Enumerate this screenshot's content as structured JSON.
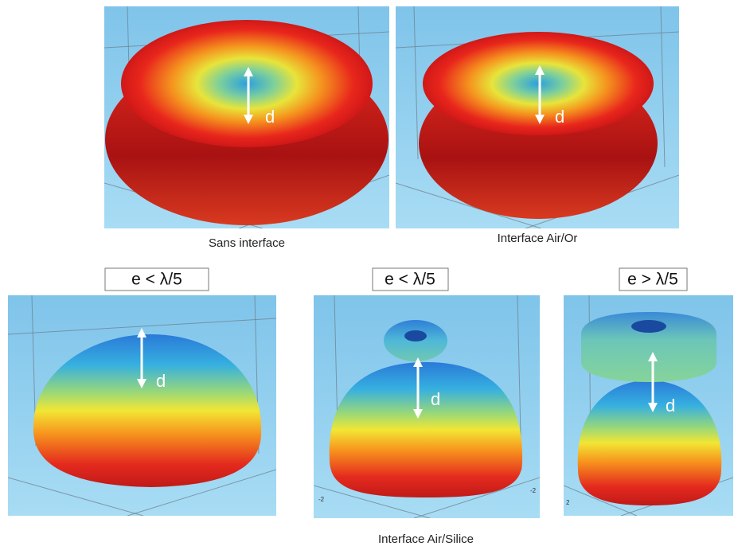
{
  "panels": [
    {
      "label": "d",
      "caption": "Sans interface"
    },
    {
      "label": "d",
      "caption": "Interface Air/Or"
    },
    {
      "label": "d",
      "condition": "e < λ/5"
    },
    {
      "label": "d",
      "condition": "e < λ/5",
      "axis_labels": [
        "-2",
        "-2"
      ]
    },
    {
      "label": "d",
      "condition": "e > λ/5",
      "axis_labels": [
        "2"
      ]
    }
  ],
  "group_caption": "Interface Air/Silice"
}
